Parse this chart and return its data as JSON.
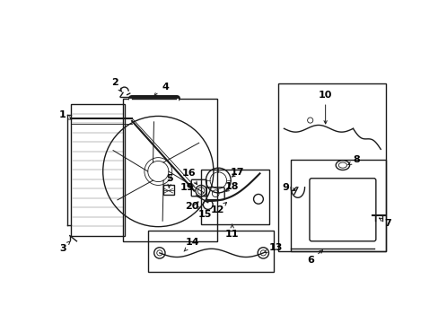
{
  "bg_color": "#ffffff",
  "line_color": "#1a1a1a",
  "text_color": "#000000",
  "fig_width": 4.89,
  "fig_height": 3.6,
  "dpi": 100,
  "label_positions": {
    "1": [
      55,
      215,
      68,
      202
    ],
    "2": [
      88,
      298,
      94,
      282
    ],
    "3": [
      52,
      252,
      60,
      265
    ],
    "4": [
      148,
      298,
      148,
      282
    ],
    "5": [
      163,
      222,
      163,
      208
    ],
    "6": [
      352,
      152,
      352,
      140
    ],
    "7": [
      453,
      185,
      465,
      185
    ],
    "8": [
      408,
      185,
      420,
      185
    ],
    "9": [
      340,
      210,
      328,
      210
    ],
    "10": [
      378,
      90,
      378,
      106
    ],
    "11": [
      263,
      218,
      263,
      232
    ],
    "12": [
      248,
      205,
      236,
      218
    ],
    "13": [
      302,
      296,
      314,
      296
    ],
    "14": [
      202,
      296,
      214,
      296
    ],
    "15": [
      195,
      240,
      207,
      253
    ],
    "16": [
      185,
      212,
      185,
      198
    ],
    "17": [
      225,
      198,
      225,
      184
    ],
    "18": [
      265,
      208,
      278,
      208
    ],
    "19": [
      200,
      218,
      188,
      228
    ],
    "20": [
      205,
      228,
      193,
      238
    ]
  }
}
